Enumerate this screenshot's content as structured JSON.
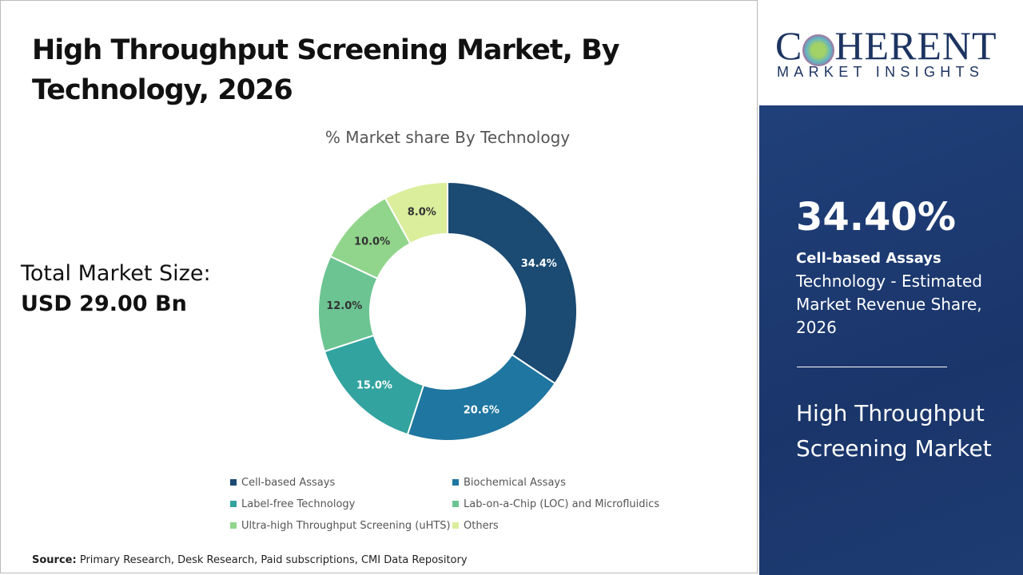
{
  "header": {
    "title": "High Throughput Screening Market, By Technology, 2026"
  },
  "total": {
    "label": "Total Market Size:",
    "value": "USD 29.00 Bn"
  },
  "source": {
    "label": "Source:",
    "text": "Primary Research, Desk Research, Paid subscriptions, CMI Data Repository"
  },
  "logo": {
    "text_top": "COHERENT",
    "text_bottom": "MARKET INSIGHTS"
  },
  "panel": {
    "percent": "34.40%",
    "segment": "Cell-based Assays",
    "desc": "Technology - Estimated Market Revenue Share, 2026",
    "market": "High Throughput Screening Market"
  },
  "chart_data": {
    "type": "donut",
    "title": "% Market share By Technology",
    "categories": [
      "Cell-based Assays",
      "Biochemical Assays",
      "Label-free Technology",
      "Lab-on-a-Chip (LOC) and Microfluidics",
      "Ultra-high Throughput Screening (uHTS)",
      "Others"
    ],
    "values": [
      34.4,
      20.6,
      15.0,
      12.0,
      10.0,
      8.0
    ],
    "labels": [
      "34.4%",
      "20.6%",
      "15.0%",
      "12.0%",
      "10.0%",
      "8.0%"
    ],
    "colors": [
      "#1b4a72",
      "#1f76a1",
      "#32a39f",
      "#6cc493",
      "#90d58b",
      "#daee9c"
    ],
    "legend": "bottom"
  }
}
